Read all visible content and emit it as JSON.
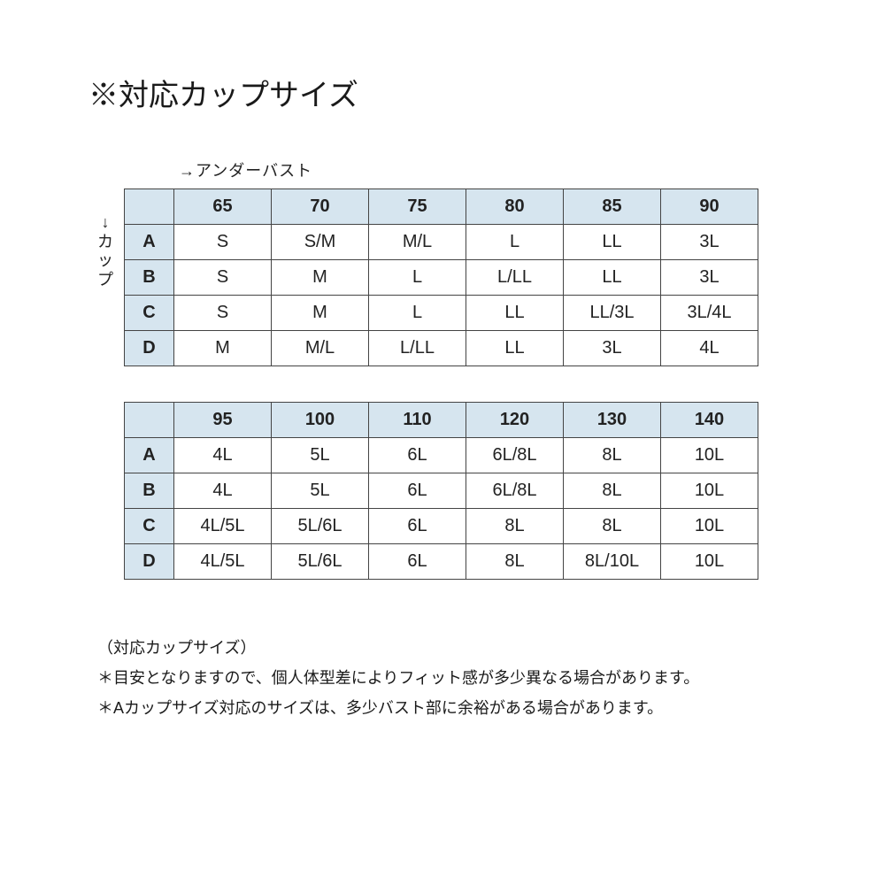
{
  "title": "※対応カップサイズ",
  "col_axis_label": "→アンダーバスト",
  "row_axis_label": [
    "↓",
    "カ",
    "ッ",
    "プ"
  ],
  "table1": {
    "columns": [
      "65",
      "70",
      "75",
      "80",
      "85",
      "90"
    ],
    "rows": [
      {
        "h": "A",
        "cells": [
          "S",
          "S/M",
          "M/L",
          "L",
          "LL",
          "3L"
        ]
      },
      {
        "h": "B",
        "cells": [
          "S",
          "M",
          "L",
          "L/LL",
          "LL",
          "3L"
        ]
      },
      {
        "h": "C",
        "cells": [
          "S",
          "M",
          "L",
          "LL",
          "LL/3L",
          "3L/4L"
        ]
      },
      {
        "h": "D",
        "cells": [
          "M",
          "M/L",
          "L/LL",
          "LL",
          "3L",
          "4L"
        ]
      }
    ]
  },
  "table2": {
    "columns": [
      "95",
      "100",
      "110",
      "120",
      "130",
      "140"
    ],
    "rows": [
      {
        "h": "A",
        "cells": [
          "4L",
          "5L",
          "6L",
          "6L/8L",
          "8L",
          "10L"
        ]
      },
      {
        "h": "B",
        "cells": [
          "4L",
          "5L",
          "6L",
          "6L/8L",
          "8L",
          "10L"
        ]
      },
      {
        "h": "C",
        "cells": [
          "4L/5L",
          "5L/6L",
          "6L",
          "8L",
          "8L",
          "10L"
        ]
      },
      {
        "h": "D",
        "cells": [
          "4L/5L",
          "5L/6L",
          "6L",
          "8L",
          "8L/10L",
          "10L"
        ]
      }
    ]
  },
  "notes": {
    "heading": "（対応カップサイズ）",
    "line1": "＊目安となりますので、個人体型差によりフィット感が多少異なる場合があります。",
    "line2": "＊Aカップサイズ対応のサイズは、多少バスト部に余裕がある場合があります。"
  },
  "colors": {
    "header_bg": "#d6e5ef",
    "border": "#444444",
    "text": "#1a1a1a",
    "background": "#ffffff"
  }
}
